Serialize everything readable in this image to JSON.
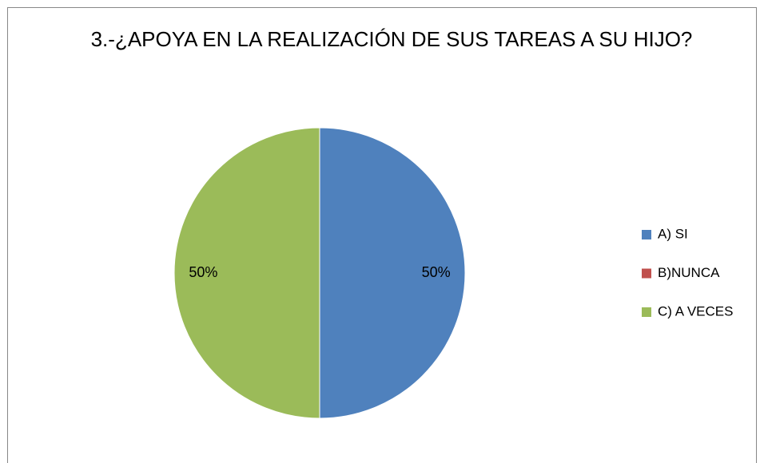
{
  "chart_data": {
    "type": "pie",
    "title": "3.-¿APOYA EN LA REALIZACIÓN DE SUS TAREAS A SU HIJO?",
    "categories": [
      "A) SI",
      "B)NUNCA",
      "C) A VECES"
    ],
    "values": [
      50,
      0,
      50
    ],
    "value_labels": [
      "50%",
      null,
      "50%"
    ],
    "colors": [
      "#4f81bd",
      "#c0504d",
      "#9bbb59"
    ],
    "legend": "right"
  }
}
